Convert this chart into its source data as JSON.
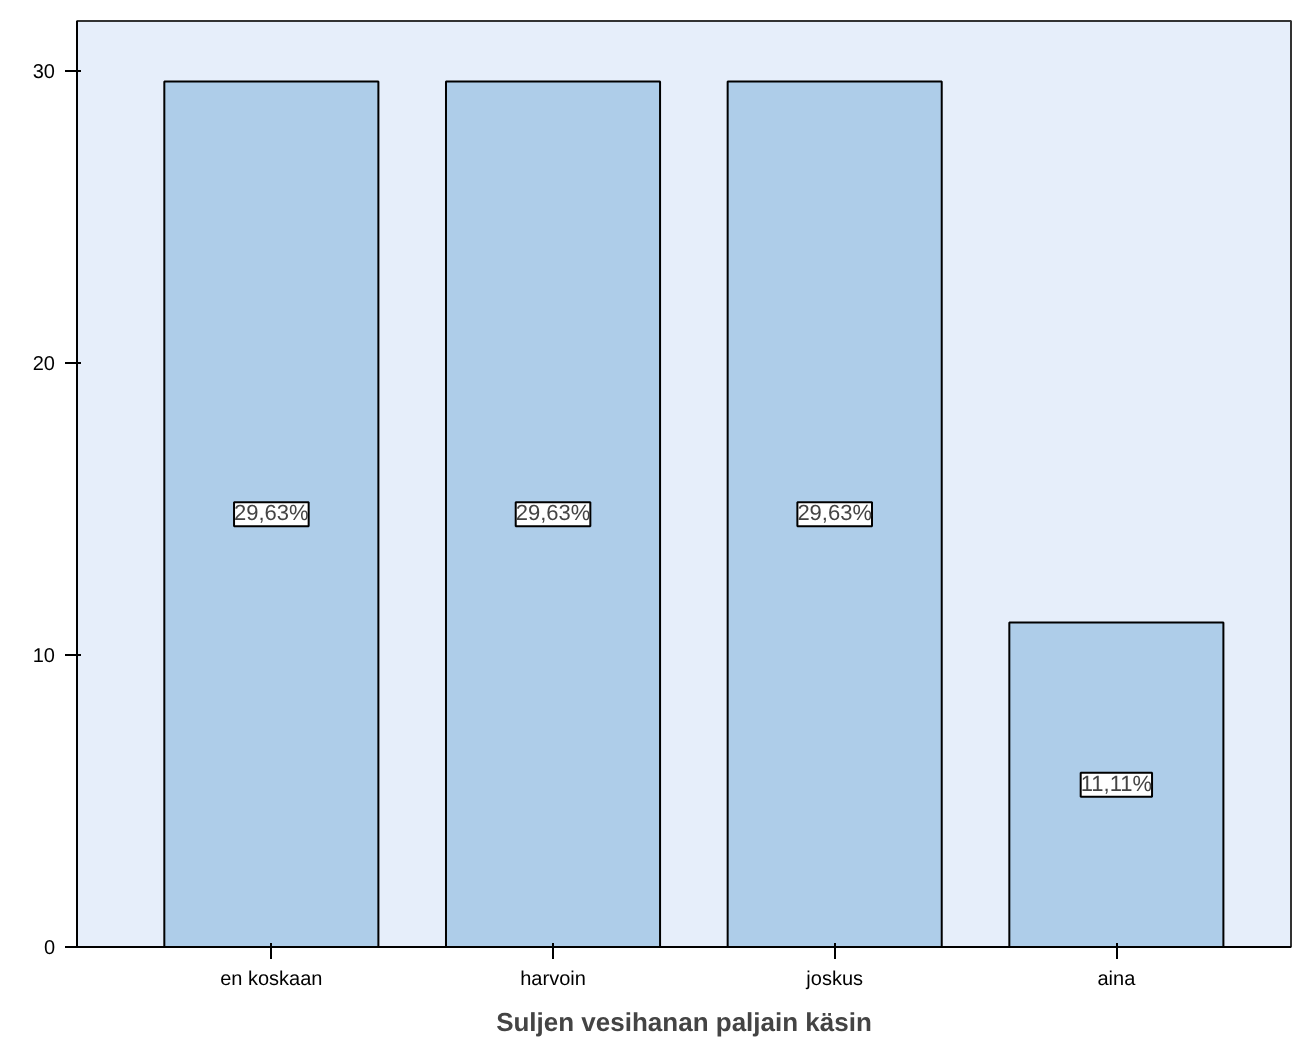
{
  "chart_data": {
    "type": "bar",
    "xlabel": "Suljen vesihanan paljain käsin",
    "categories": [
      "en koskaan",
      "harvoin",
      "joskus",
      "aina"
    ],
    "values": [
      29.63,
      29.63,
      29.63,
      11.11
    ],
    "value_labels": [
      "29,63%",
      "29,63%",
      "29,63%",
      "11,11%"
    ],
    "color": "#aecde9",
    "ylim": [
      0,
      31.7
    ],
    "yticks": [
      0,
      10,
      20,
      30
    ],
    "grid": false
  }
}
